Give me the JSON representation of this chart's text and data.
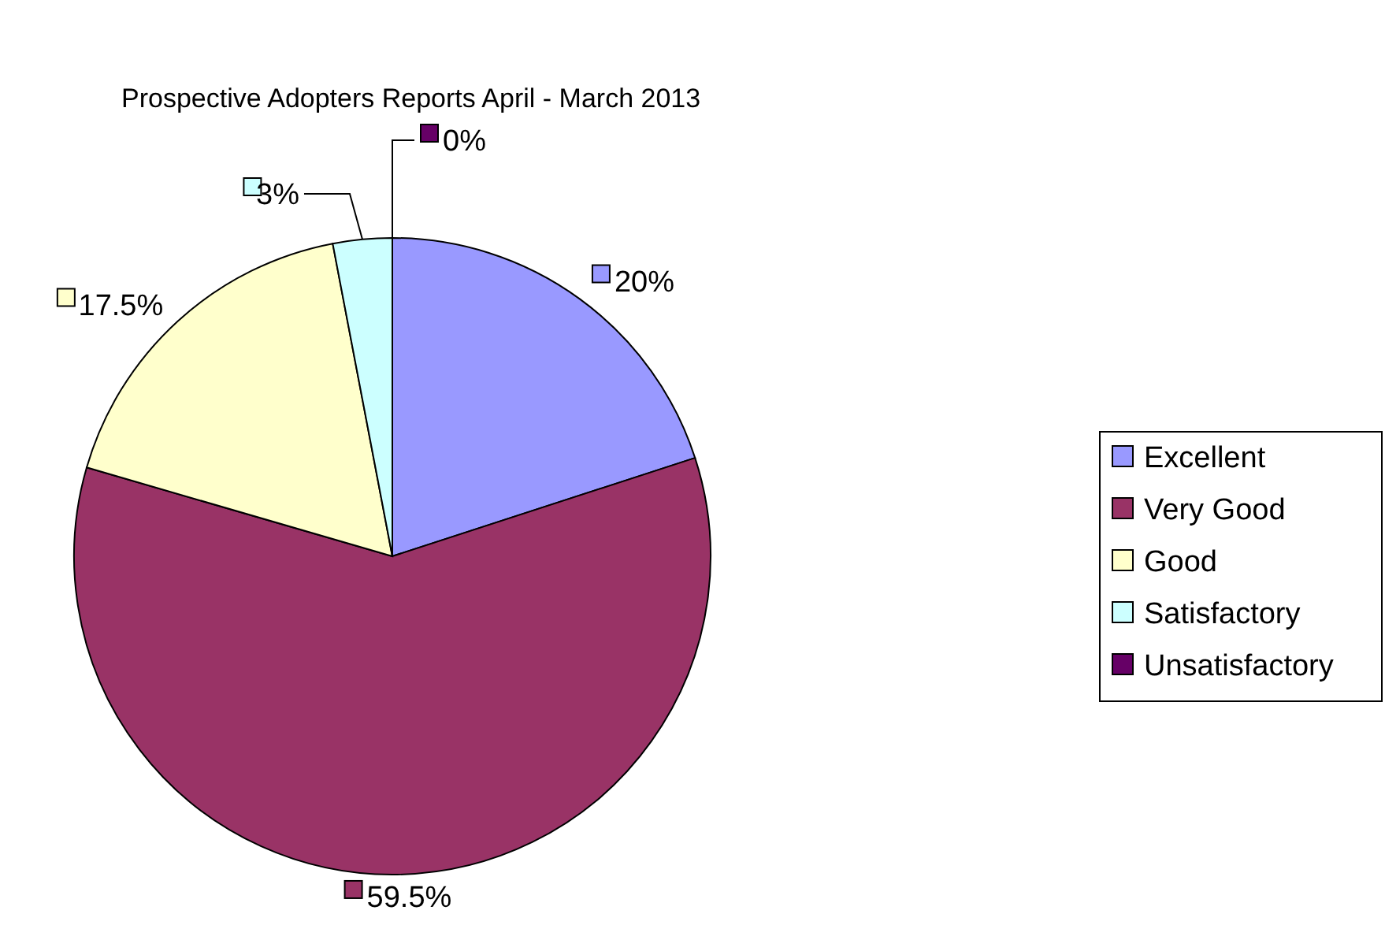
{
  "chart_data": {
    "type": "pie",
    "title": "Prospective Adopters Reports April - March 2013",
    "categories": [
      "Excellent",
      "Very Good",
      "Good",
      "Satisfactory",
      "Unsatisfactory"
    ],
    "values": [
      20,
      59.5,
      17.5,
      3,
      0
    ],
    "value_labels": [
      "20%",
      "59.5%",
      "17.5%",
      "3%",
      "0%"
    ],
    "colors": [
      "#9999ff",
      "#993366",
      "#ffffcc",
      "#ccffff",
      "#660066"
    ],
    "legend": "right"
  }
}
